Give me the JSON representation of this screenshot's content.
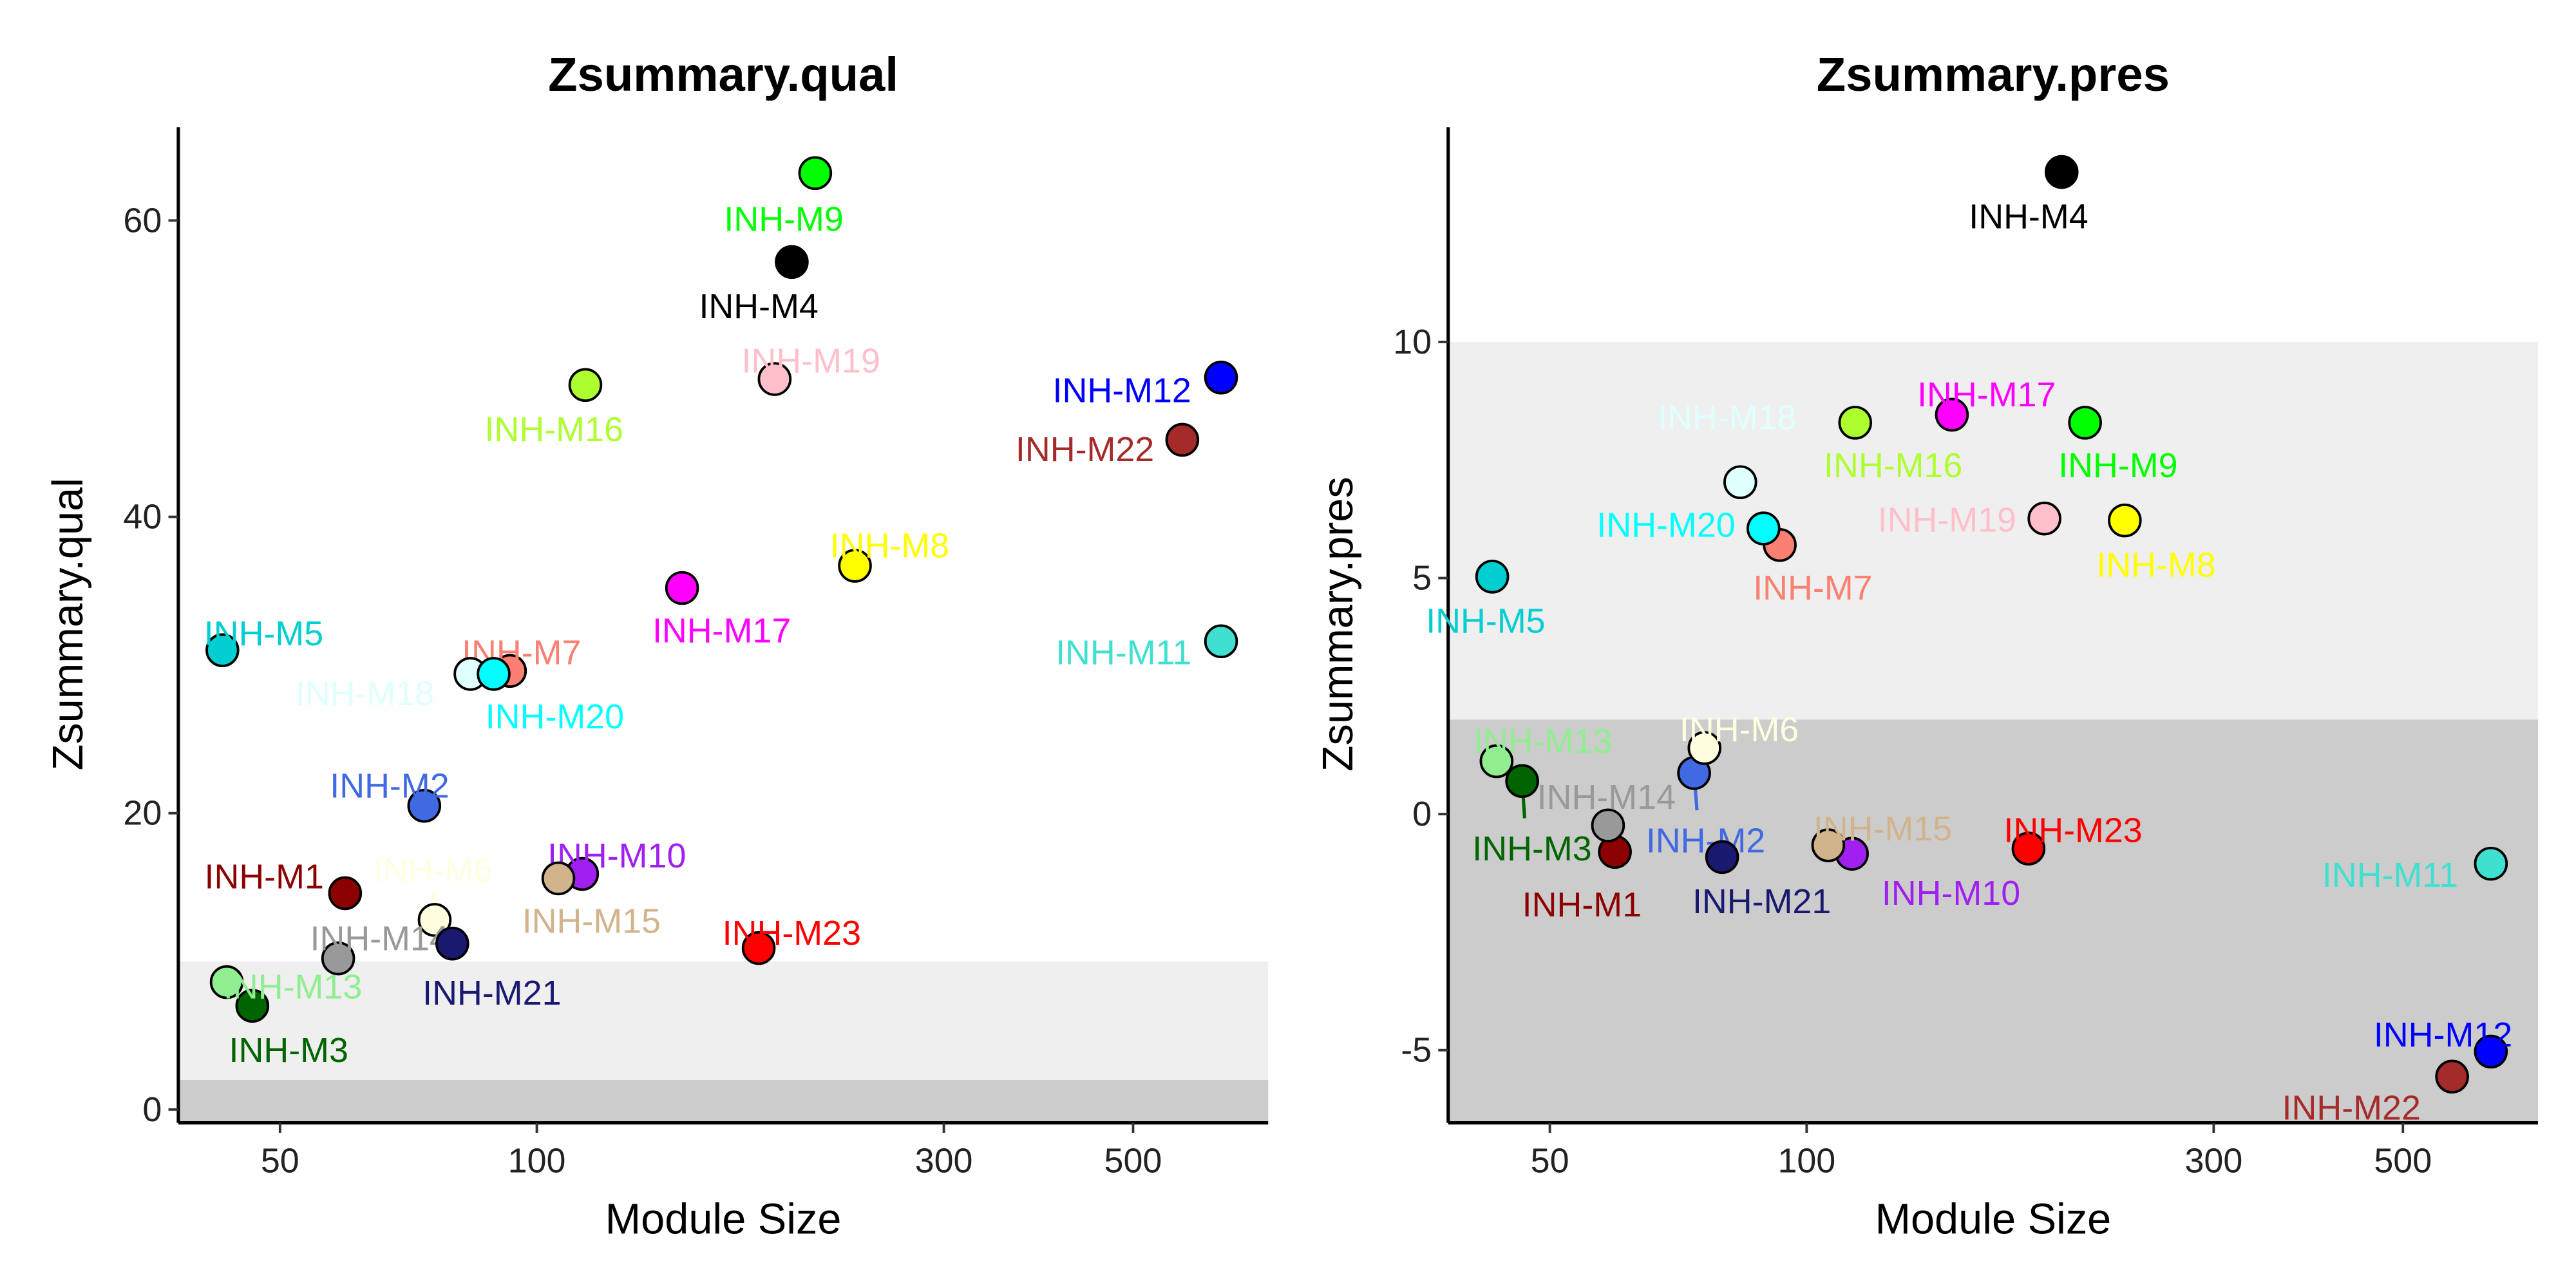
{
  "modules": [
    {
      "name": "INH-M1",
      "color": "#8B0000",
      "size": 59.6
    },
    {
      "name": "INH-M2",
      "color": "#4169E1",
      "size": 73.8
    },
    {
      "name": "INH-M3",
      "color": "#006400",
      "size": 46.4
    },
    {
      "name": "INH-M4",
      "color": "#000000",
      "size": 199
    },
    {
      "name": "INH-M5",
      "color": "#00CED1",
      "size": 42.8
    },
    {
      "name": "INH-M6",
      "color": "#FFFFE0",
      "size": 75.9
    },
    {
      "name": "INH-M7",
      "color": "#FA8072",
      "size": 93
    },
    {
      "name": "INH-M8",
      "color": "#FFFF00",
      "size": 236
    },
    {
      "name": "INH-M9",
      "color": "#00FF00",
      "size": 212
    },
    {
      "name": "INH-M10",
      "color": "#A020F0",
      "size": 113
    },
    {
      "name": "INH-M11",
      "color": "#40E0D0",
      "size": 634
    },
    {
      "name": "INH-M12",
      "color": "#0000FF",
      "size": 634
    },
    {
      "name": "INH-M13",
      "color": "#90EE90",
      "size": 43.3
    },
    {
      "name": "INH-M14",
      "color": "#999999",
      "size": 58.5
    },
    {
      "name": "INH-M15",
      "color": "#D2B48C",
      "size": 106
    },
    {
      "name": "INH-M16",
      "color": "#ADFF2F",
      "size": 114
    },
    {
      "name": "INH-M17",
      "color": "#FF00FF",
      "size": 148
    },
    {
      "name": "INH-M18",
      "color": "#E0FFFF",
      "size": 83.6
    },
    {
      "name": "INH-M19",
      "color": "#FFC0CB",
      "size": 190
    },
    {
      "name": "INH-M20",
      "color": "#00FFFF",
      "size": 89
    },
    {
      "name": "INH-M21",
      "color": "#191970",
      "size": 79.6
    },
    {
      "name": "INH-M22",
      "color": "#A52A2A",
      "size": 571
    },
    {
      "name": "INH-M23",
      "color": "#FF0000",
      "size": 182
    }
  ],
  "chart_data": [
    {
      "type": "scatter",
      "title": "Zsummary.qual",
      "xlabel": "Module Size",
      "ylabel": "Zsummary.qual",
      "x_scale": "log",
      "xlim": [
        38,
        720
      ],
      "ylim": [
        -0.9,
        66.3
      ],
      "xticks": [
        50,
        100,
        300,
        500
      ],
      "yticks": [
        0,
        20,
        40,
        60
      ],
      "bands": [
        {
          "from": -0.9,
          "to": 2,
          "color": "#CCCCCC"
        },
        {
          "from": 2,
          "to": 10,
          "color": "#EFEFEF"
        }
      ],
      "values": [
        14.6,
        20.5,
        7.0,
        57.2,
        31.0,
        12.8,
        29.6,
        36.7,
        63.2,
        15.9,
        31.6,
        49.4,
        8.6,
        10.2,
        15.6,
        48.9,
        35.2,
        29.4,
        49.3,
        29.4,
        11.2,
        45.2,
        10.9
      ],
      "grid": false,
      "legend": "none"
    },
    {
      "type": "scatter",
      "title": "Zsummary.pres",
      "xlabel": "Module Size",
      "ylabel": "Zsummary.pres",
      "x_scale": "log",
      "xlim": [
        38,
        720
      ],
      "ylim": [
        -6.54,
        14.55
      ],
      "xticks": [
        50,
        100,
        300,
        500
      ],
      "yticks": [
        -5,
        0,
        5,
        10
      ],
      "bands": [
        {
          "from": -6.54,
          "to": 2,
          "color": "#CCCCCC"
        },
        {
          "from": 2,
          "to": 10,
          "color": "#EFEFEF"
        }
      ],
      "values": [
        -0.8,
        0.87,
        0.7,
        13.6,
        5.03,
        1.4,
        5.7,
        6.22,
        8.29,
        -0.84,
        -1.05,
        -5.03,
        1.12,
        -0.24,
        -0.66,
        8.29,
        8.46,
        7.03,
        6.26,
        6.05,
        -0.91,
        -5.56,
        -0.73
      ],
      "grid": false,
      "legend": "none"
    }
  ]
}
